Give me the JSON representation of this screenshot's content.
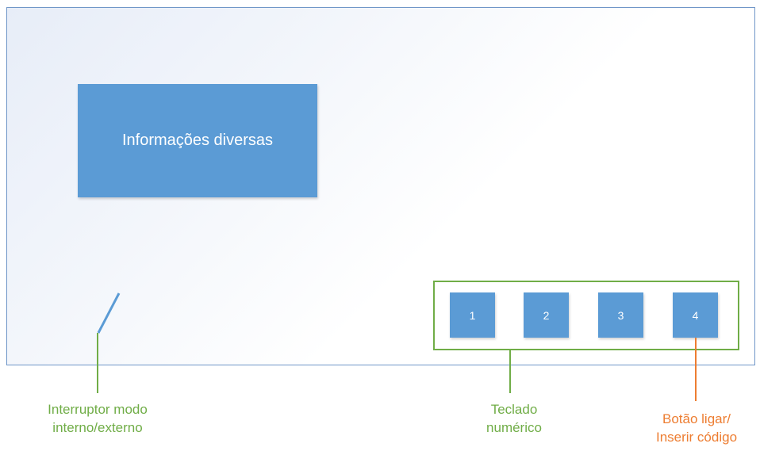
{
  "info_box": {
    "label": "Informações diversas"
  },
  "keypad": {
    "keys": [
      "1",
      "2",
      "3",
      "4"
    ]
  },
  "captions": {
    "switch": {
      "line1": "Interruptor modo",
      "line2": "interno/externo"
    },
    "keypad": {
      "line1": "Teclado",
      "line2": "numérico"
    },
    "power_button": {
      "line1": "Botão ligar/",
      "line2": "Inserir código"
    }
  },
  "colors": {
    "panel_border": "#6f96c8",
    "box_fill": "#5b9bd5",
    "green": "#70ad47",
    "orange": "#ed7d31"
  }
}
